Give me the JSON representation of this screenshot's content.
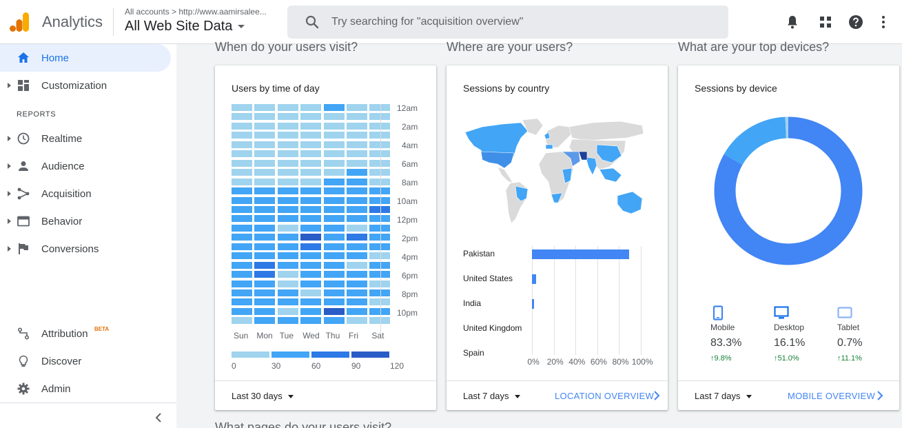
{
  "header": {
    "app_name": "Analytics",
    "account_path": "All accounts > http://www.aamirsalee...",
    "view_name": "All Web Site Data",
    "search_placeholder": "Try searching for \"acquisition overview\""
  },
  "sidebar": {
    "items_top": [
      {
        "label": "Home",
        "icon": "home-icon",
        "active": true
      },
      {
        "label": "Customization",
        "icon": "dashboard-icon",
        "active": false
      }
    ],
    "section_label": "REPORTS",
    "reports": [
      {
        "label": "Realtime",
        "icon": "clock-icon"
      },
      {
        "label": "Audience",
        "icon": "person-icon"
      },
      {
        "label": "Acquisition",
        "icon": "acquisition-icon"
      },
      {
        "label": "Behavior",
        "icon": "behavior-icon"
      },
      {
        "label": "Conversions",
        "icon": "flag-icon"
      }
    ],
    "bottom": [
      {
        "label": "Attribution",
        "icon": "attribution-icon",
        "badge": "BETA"
      },
      {
        "label": "Discover",
        "icon": "lightbulb-icon"
      },
      {
        "label": "Admin",
        "icon": "gear-icon"
      }
    ]
  },
  "sections": {
    "visit": "When do your users visit?",
    "location": "Where are your users?",
    "devices": "What are your top devices?",
    "next": "What pages do your users visit?"
  },
  "card_time": {
    "title": "Users by time of day",
    "range": "Last 30 days",
    "days": [
      "Sun",
      "Mon",
      "Tue",
      "Wed",
      "Thu",
      "Fri",
      "Sat"
    ],
    "hour_labels": [
      "12am",
      "2am",
      "4am",
      "6am",
      "8am",
      "10am",
      "12pm",
      "2pm",
      "4pm",
      "6pm",
      "8pm",
      "10pm"
    ],
    "legend_ticks": [
      "0",
      "30",
      "60",
      "90",
      "120"
    ],
    "colors": [
      "#9fd3ee",
      "#42a5f5",
      "#2d79e6",
      "#2a5cc8"
    ]
  },
  "card_country": {
    "title": "Sessions by country",
    "range": "Last 7 days",
    "link": "LOCATION OVERVIEW",
    "ticks": [
      "0%",
      "20%",
      "40%",
      "60%",
      "80%",
      "100%"
    ]
  },
  "card_device": {
    "title": "Sessions by device",
    "range": "Last 7 days",
    "link": "MOBILE OVERVIEW",
    "devices": [
      {
        "name": "Mobile",
        "pct": "83.3%",
        "change": "9.8%",
        "icon": "mobile-icon"
      },
      {
        "name": "Desktop",
        "pct": "16.1%",
        "change": "51.0%",
        "icon": "desktop-icon"
      },
      {
        "name": "Tablet",
        "pct": "0.7%",
        "change": "11.1%",
        "icon": "tablet-icon"
      }
    ],
    "colors": [
      "#4285f4",
      "#42a5f5",
      "#9fd3ee"
    ]
  },
  "chart_data": [
    {
      "type": "heatmap",
      "title": "Users by time of day",
      "x": [
        "Sun",
        "Mon",
        "Tue",
        "Wed",
        "Thu",
        "Fri",
        "Sat"
      ],
      "y": [
        "12am",
        "1am",
        "2am",
        "3am",
        "4am",
        "5am",
        "6am",
        "7am",
        "8am",
        "9am",
        "10am",
        "11am",
        "12pm",
        "1pm",
        "2pm",
        "3pm",
        "4pm",
        "5pm",
        "6pm",
        "7pm",
        "8pm",
        "9pm",
        "10pm",
        "11pm"
      ],
      "scale": [
        0,
        120
      ],
      "levels": [
        [
          0,
          0,
          0,
          0,
          1,
          0,
          0
        ],
        [
          0,
          0,
          0,
          0,
          0,
          0,
          0
        ],
        [
          0,
          0,
          0,
          0,
          0,
          0,
          0
        ],
        [
          0,
          0,
          0,
          0,
          0,
          0,
          0
        ],
        [
          0,
          0,
          0,
          0,
          0,
          0,
          0
        ],
        [
          0,
          0,
          0,
          0,
          0,
          0,
          0
        ],
        [
          0,
          0,
          0,
          0,
          0,
          0,
          0
        ],
        [
          0,
          0,
          0,
          0,
          0,
          1,
          0
        ],
        [
          0,
          0,
          0,
          0,
          1,
          1,
          0
        ],
        [
          1,
          1,
          1,
          1,
          1,
          1,
          1
        ],
        [
          1,
          1,
          1,
          1,
          1,
          1,
          1
        ],
        [
          1,
          1,
          1,
          1,
          1,
          1,
          2
        ],
        [
          1,
          1,
          1,
          1,
          1,
          1,
          1
        ],
        [
          1,
          1,
          0,
          1,
          1,
          0,
          1
        ],
        [
          1,
          1,
          1,
          3,
          1,
          2,
          1
        ],
        [
          1,
          1,
          1,
          2,
          1,
          1,
          1
        ],
        [
          1,
          1,
          1,
          1,
          1,
          1,
          0
        ],
        [
          1,
          2,
          1,
          1,
          1,
          0,
          1
        ],
        [
          1,
          2,
          0,
          1,
          1,
          1,
          1
        ],
        [
          1,
          1,
          0,
          1,
          1,
          1,
          0
        ],
        [
          1,
          1,
          1,
          0,
          1,
          1,
          1
        ],
        [
          1,
          1,
          1,
          1,
          1,
          1,
          0
        ],
        [
          1,
          1,
          0,
          1,
          3,
          1,
          1
        ],
        [
          0,
          1,
          1,
          1,
          1,
          0,
          0
        ]
      ]
    },
    {
      "type": "bar",
      "title": "Sessions by country",
      "categories": [
        "Pakistan",
        "United States",
        "India",
        "United Kingdom",
        "Spain"
      ],
      "values": [
        89,
        4,
        2,
        0,
        0
      ],
      "xlim": [
        0,
        100
      ]
    },
    {
      "type": "pie",
      "title": "Sessions by device",
      "categories": [
        "Mobile",
        "Desktop",
        "Tablet"
      ],
      "values": [
        83.3,
        16.1,
        0.7
      ]
    }
  ]
}
